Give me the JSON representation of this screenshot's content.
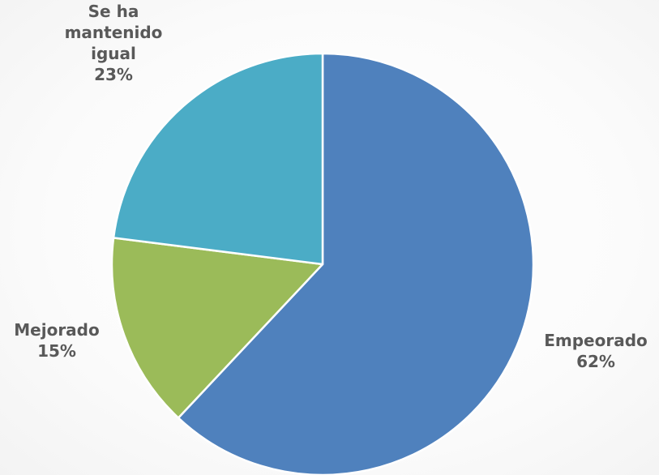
{
  "chart_data": {
    "type": "pie",
    "title": "",
    "slices": [
      {
        "label": "Empeorado",
        "value": 62,
        "value_label": "62%",
        "color": "#4f81bd"
      },
      {
        "label": "Mejorado",
        "value": 15,
        "value_label": "15%",
        "color": "#9bbb59"
      },
      {
        "label": "Se ha mantenido igual",
        "value": 23,
        "value_label": "23%",
        "color": "#4bacc6"
      }
    ],
    "start": "12 o'clock",
    "direction": "clockwise",
    "legend": "none",
    "data_labels": "outside, category name and percentage"
  }
}
